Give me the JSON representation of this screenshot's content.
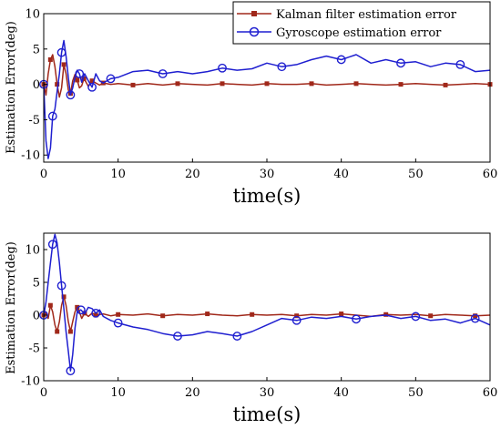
{
  "colors": {
    "kalman": "#a0281a",
    "gyro": "#1f1fd0"
  },
  "chart_data": [
    {
      "type": "line",
      "xlabel": "time(s)",
      "ylabel": "Estimation Error(deg)",
      "xlim": [
        0,
        60
      ],
      "ylim": [
        -11,
        10
      ],
      "xticks": [
        "0",
        "10",
        "20",
        "30",
        "40",
        "50",
        "60"
      ],
      "yticks": [
        "-10",
        "-5",
        "0",
        "5",
        "10"
      ],
      "legend_position": "top-right",
      "series": [
        {
          "name": "Kalman filter estimation error",
          "marker": "filled-square",
          "x": [
            0,
            0.3,
            0.6,
            0.9,
            1.2,
            1.5,
            1.8,
            2.1,
            2.4,
            2.7,
            3,
            3.3,
            3.6,
            3.9,
            4.2,
            4.5,
            4.8,
            5.1,
            5.4,
            5.7,
            6,
            6.5,
            7,
            7.5,
            8,
            9,
            10,
            12,
            14,
            16,
            18,
            20,
            22,
            24,
            26,
            28,
            30,
            32,
            34,
            36,
            38,
            40,
            42,
            44,
            46,
            48,
            50,
            52,
            54,
            56,
            58,
            60
          ],
          "y": [
            0,
            -1.5,
            1.5,
            3.5,
            4.2,
            2.5,
            0,
            -1.8,
            -0.5,
            2.8,
            1.5,
            -0.8,
            -1.3,
            0.5,
            1.4,
            0.6,
            -0.5,
            -0.2,
            0.8,
            0.3,
            -0.3,
            0.5,
            0.2,
            -0.1,
            0.2,
            0,
            0.1,
            -0.1,
            0.1,
            -0.1,
            0.1,
            0,
            -0.1,
            0.1,
            0,
            -0.1,
            0.1,
            0,
            0,
            0.1,
            -0.1,
            0,
            0.1,
            0,
            -0.1,
            0,
            0.1,
            0,
            -0.1,
            0,
            0.1,
            0
          ]
        },
        {
          "name": "Gyroscope estimation error",
          "marker": "circle",
          "x": [
            0,
            0.3,
            0.6,
            0.9,
            1.2,
            1.5,
            1.8,
            2.1,
            2.4,
            2.7,
            3,
            3.3,
            3.6,
            3.9,
            4.2,
            4.5,
            4.8,
            5.1,
            5.5,
            6,
            6.5,
            7,
            7.5,
            8,
            9,
            10,
            12,
            14,
            16,
            18,
            20,
            22,
            24,
            26,
            28,
            30,
            32,
            34,
            36,
            38,
            40,
            42,
            44,
            46,
            48,
            50,
            52,
            54,
            56,
            58,
            60
          ],
          "y": [
            0,
            -8,
            -10.5,
            -9,
            -4.5,
            -3.5,
            -1,
            1.5,
            4.5,
            6.2,
            4,
            1,
            -1.5,
            -0.5,
            1,
            2,
            1.5,
            0.3,
            1.5,
            0.5,
            -0.4,
            1.5,
            0.5,
            0.2,
            0.8,
            1,
            1.8,
            2,
            1.5,
            1.8,
            1.5,
            1.8,
            2.3,
            2,
            2.2,
            3,
            2.5,
            2.8,
            3.5,
            4,
            3.5,
            4.2,
            3,
            3.5,
            3,
            3.2,
            2.5,
            3,
            2.8,
            1.8,
            2
          ]
        }
      ]
    },
    {
      "type": "line",
      "xlabel": "time(s)",
      "ylabel": "Estimation Error(deg)",
      "xlim": [
        0,
        60
      ],
      "ylim": [
        -10,
        12.5
      ],
      "xticks": [
        "0",
        "10",
        "20",
        "30",
        "40",
        "50",
        "60"
      ],
      "yticks": [
        "-10",
        "-5",
        "0",
        "5",
        "10"
      ],
      "series": [
        {
          "name": "Kalman filter estimation error",
          "marker": "filled-square",
          "x": [
            0,
            0.3,
            0.6,
            0.9,
            1.2,
            1.5,
            1.8,
            2.1,
            2.4,
            2.7,
            3,
            3.3,
            3.6,
            3.9,
            4.2,
            4.5,
            4.8,
            5.1,
            5.5,
            6,
            6.5,
            7,
            8,
            9,
            10,
            12,
            14,
            16,
            18,
            20,
            22,
            24,
            26,
            28,
            30,
            32,
            34,
            36,
            38,
            40,
            42,
            44,
            46,
            48,
            50,
            52,
            54,
            56,
            58,
            60
          ],
          "y": [
            0,
            0.5,
            -0.5,
            1.5,
            0.5,
            -1.5,
            -2.5,
            -1,
            1.5,
            2.8,
            1.5,
            -1,
            -2.5,
            -1,
            0.5,
            1.2,
            0.5,
            -0.5,
            0.3,
            -0.2,
            0.3,
            0,
            0.2,
            -0.1,
            0.1,
            0,
            0.2,
            -0.1,
            0.1,
            0,
            0.2,
            0,
            -0.1,
            0.1,
            0,
            0.1,
            -0.1,
            0.1,
            0,
            0.2,
            0,
            -0.2,
            0.1,
            0,
            0.1,
            -0.1,
            0.1,
            0,
            -0.1,
            0
          ]
        },
        {
          "name": "Gyroscope estimation error",
          "marker": "circle",
          "x": [
            0,
            0.3,
            0.6,
            0.9,
            1.2,
            1.5,
            1.8,
            2.1,
            2.4,
            2.7,
            3,
            3.3,
            3.6,
            3.9,
            4.2,
            4.5,
            5,
            5.5,
            6,
            6.5,
            7,
            7.5,
            8,
            9,
            10,
            12,
            14,
            16,
            18,
            20,
            22,
            24,
            26,
            28,
            30,
            32,
            34,
            36,
            38,
            40,
            42,
            44,
            46,
            48,
            50,
            52,
            54,
            56,
            58,
            60
          ],
          "y": [
            0,
            2,
            5,
            8,
            10.8,
            12.3,
            11,
            8,
            4.5,
            1,
            -2.5,
            -5.5,
            -8.5,
            -6,
            -2,
            0.5,
            0.8,
            0.2,
            1.2,
            1,
            0.3,
            0.8,
            -0.2,
            -0.8,
            -1.2,
            -1.8,
            -2.2,
            -2.8,
            -3.2,
            -3,
            -2.5,
            -2.8,
            -3.2,
            -2.5,
            -1.5,
            -0.5,
            -0.8,
            -0.3,
            -0.5,
            -0.2,
            -0.6,
            -0.2,
            0,
            -0.5,
            -0.2,
            -0.8,
            -0.6,
            -1.2,
            -0.5,
            -1.5
          ]
        }
      ]
    }
  ]
}
